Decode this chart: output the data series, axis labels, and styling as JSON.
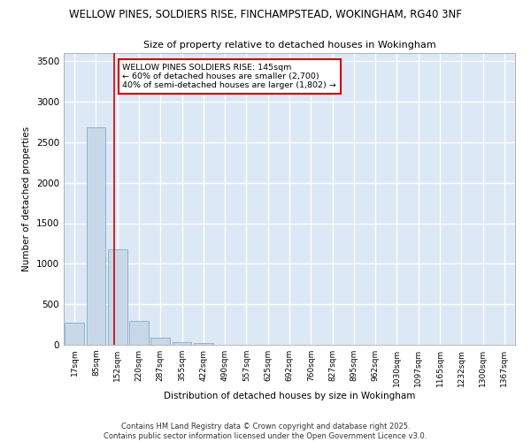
{
  "title": "WELLOW PINES, SOLDIERS RISE, FINCHAMPSTEAD, WOKINGHAM, RG40 3NF",
  "subtitle": "Size of property relative to detached houses in Wokingham",
  "xlabel": "Distribution of detached houses by size in Wokingham",
  "ylabel": "Number of detached properties",
  "bar_labels": [
    "17sqm",
    "85sqm",
    "152sqm",
    "220sqm",
    "287sqm",
    "355sqm",
    "422sqm",
    "490sqm",
    "557sqm",
    "625sqm",
    "692sqm",
    "760sqm",
    "827sqm",
    "895sqm",
    "962sqm",
    "1030sqm",
    "1097sqm",
    "1165sqm",
    "1232sqm",
    "1300sqm",
    "1367sqm"
  ],
  "bar_values": [
    270,
    2680,
    1180,
    290,
    90,
    30,
    20,
    0,
    0,
    0,
    0,
    0,
    0,
    0,
    0,
    0,
    0,
    0,
    0,
    0,
    0
  ],
  "bar_color": "#c8d8e8",
  "bar_edge_color": "#7fafc8",
  "background_color": "#dce8f5",
  "grid_color": "#ffffff",
  "vline_x": 1.85,
  "vline_color": "#cc0000",
  "annotation_title": "WELLOW PINES SOLDIERS RISE: 145sqm",
  "annotation_line1": "← 60% of detached houses are smaller (2,700)",
  "annotation_line2": "40% of semi-detached houses are larger (1,802) →",
  "annotation_box_color": "#ffffff",
  "annotation_border_color": "#cc0000",
  "ylim": [
    0,
    3600
  ],
  "yticks": [
    0,
    500,
    1000,
    1500,
    2000,
    2500,
    3000,
    3500
  ],
  "footnote1": "Contains HM Land Registry data © Crown copyright and database right 2025.",
  "footnote2": "Contains public sector information licensed under the Open Government Licence v3.0."
}
